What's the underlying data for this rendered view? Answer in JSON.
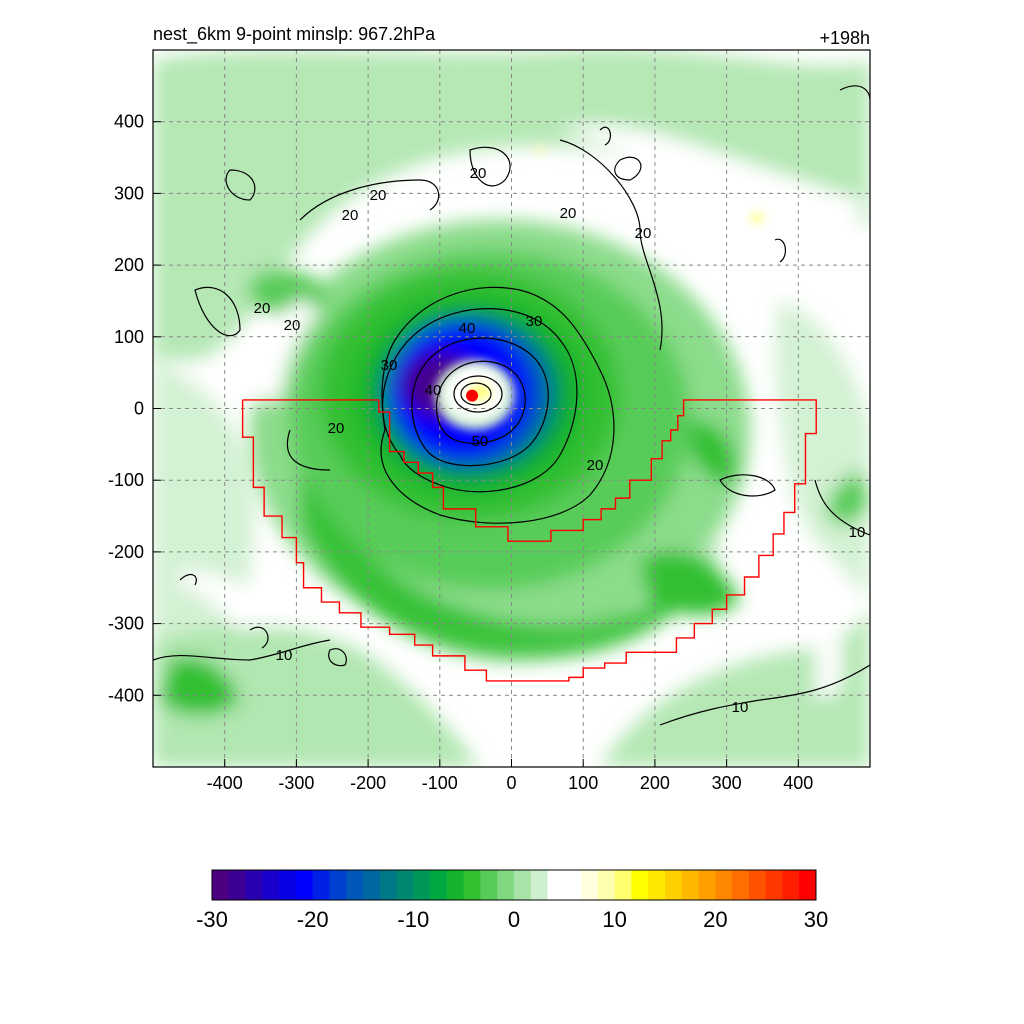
{
  "chart_data": {
    "type": "heatmap",
    "title_left": "nest_6km  9-point minslp: 967.2hPa",
    "title_right": "+198h",
    "xlim": [
      -500,
      500
    ],
    "ylim": [
      -500,
      500
    ],
    "x_ticks": [
      -400,
      -300,
      -200,
      -100,
      0,
      100,
      200,
      300,
      400
    ],
    "y_ticks": [
      400,
      300,
      200,
      100,
      0,
      -100,
      -200,
      -300,
      -400
    ],
    "grid": true,
    "colorbar": {
      "min": -30,
      "max": 30,
      "ticks": [
        -30,
        -20,
        -10,
        0,
        10,
        20,
        30
      ],
      "colors": [
        "#4b0082",
        "#3c0095",
        "#2a00b0",
        "#1a00cc",
        "#0a00e6",
        "#0000ff",
        "#0020e8",
        "#0040d0",
        "#0058b8",
        "#0068a0",
        "#007888",
        "#008870",
        "#009858",
        "#00a840",
        "#14b42c",
        "#30c030",
        "#58cc58",
        "#80d880",
        "#a8e4a8",
        "#cef0ce",
        "#ffffff",
        "#ffffff",
        "#ffffe0",
        "#ffffb0",
        "#ffff70",
        "#ffff00",
        "#ffe800",
        "#ffd000",
        "#ffb800",
        "#ffa000",
        "#ff8800",
        "#ff6e00",
        "#ff5200",
        "#ff3800",
        "#ff1e00",
        "#ff0000"
      ]
    },
    "contour_labels": [
      "20",
      "20",
      "20",
      "20",
      "20",
      "20",
      "20",
      "20",
      "30",
      "30",
      "40",
      "40",
      "50",
      "20",
      "10",
      "10",
      "10"
    ],
    "features": {
      "storm_center": {
        "x": -55,
        "y": 18,
        "color": "#ff0000"
      },
      "boundary_color": "#ff0000",
      "boundary": [
        [
          -375,
          12
        ],
        [
          -185,
          12
        ],
        [
          -185,
          -5
        ],
        [
          -170,
          -5
        ],
        [
          -170,
          -60
        ],
        [
          -150,
          -60
        ],
        [
          -150,
          -75
        ],
        [
          -130,
          -75
        ],
        [
          -130,
          -90
        ],
        [
          -110,
          -90
        ],
        [
          -110,
          -110
        ],
        [
          -95,
          -110
        ],
        [
          -95,
          -140
        ],
        [
          -50,
          -140
        ],
        [
          -50,
          -165
        ],
        [
          -5,
          -165
        ],
        [
          -5,
          -185
        ],
        [
          55,
          -185
        ],
        [
          55,
          -170
        ],
        [
          100,
          -170
        ],
        [
          100,
          -155
        ],
        [
          125,
          -155
        ],
        [
          125,
          -140
        ],
        [
          145,
          -140
        ],
        [
          145,
          -125
        ],
        [
          165,
          -125
        ],
        [
          165,
          -100
        ],
        [
          195,
          -100
        ],
        [
          195,
          -70
        ],
        [
          210,
          -70
        ],
        [
          210,
          -45
        ],
        [
          222,
          -45
        ],
        [
          222,
          -30
        ],
        [
          232,
          -30
        ],
        [
          232,
          -10
        ],
        [
          240,
          -10
        ],
        [
          240,
          12
        ],
        [
          425,
          12
        ],
        [
          425,
          -35
        ],
        [
          410,
          -35
        ],
        [
          410,
          -105
        ],
        [
          395,
          -105
        ],
        [
          395,
          -145
        ],
        [
          380,
          -145
        ],
        [
          380,
          -175
        ],
        [
          365,
          -175
        ],
        [
          365,
          -205
        ],
        [
          345,
          -205
        ],
        [
          345,
          -235
        ],
        [
          325,
          -235
        ],
        [
          325,
          -260
        ],
        [
          300,
          -260
        ],
        [
          300,
          -280
        ],
        [
          280,
          -280
        ],
        [
          280,
          -300
        ],
        [
          255,
          -300
        ],
        [
          255,
          -320
        ],
        [
          230,
          -320
        ],
        [
          230,
          -340
        ],
        [
          160,
          -340
        ],
        [
          160,
          -355
        ],
        [
          130,
          -355
        ],
        [
          130,
          -362
        ],
        [
          100,
          -362
        ],
        [
          100,
          -375
        ],
        [
          80,
          -375
        ],
        [
          80,
          -380
        ],
        [
          -35,
          -380
        ],
        [
          -35,
          -365
        ],
        [
          -65,
          -365
        ],
        [
          -65,
          -345
        ],
        [
          -110,
          -345
        ],
        [
          -110,
          -330
        ],
        [
          -135,
          -330
        ],
        [
          -135,
          -315
        ],
        [
          -170,
          -315
        ],
        [
          -170,
          -305
        ],
        [
          -210,
          -305
        ],
        [
          -210,
          -285
        ],
        [
          -240,
          -285
        ],
        [
          -240,
          -270
        ],
        [
          -265,
          -270
        ],
        [
          -265,
          -250
        ],
        [
          -290,
          -250
        ],
        [
          -290,
          -215
        ],
        [
          -300,
          -215
        ],
        [
          -300,
          -180
        ],
        [
          -320,
          -180
        ],
        [
          -320,
          -150
        ],
        [
          -345,
          -150
        ],
        [
          -345,
          -110
        ],
        [
          -360,
          -110
        ],
        [
          -360,
          -40
        ],
        [
          -375,
          -40
        ],
        [
          -375,
          12
        ]
      ]
    }
  }
}
